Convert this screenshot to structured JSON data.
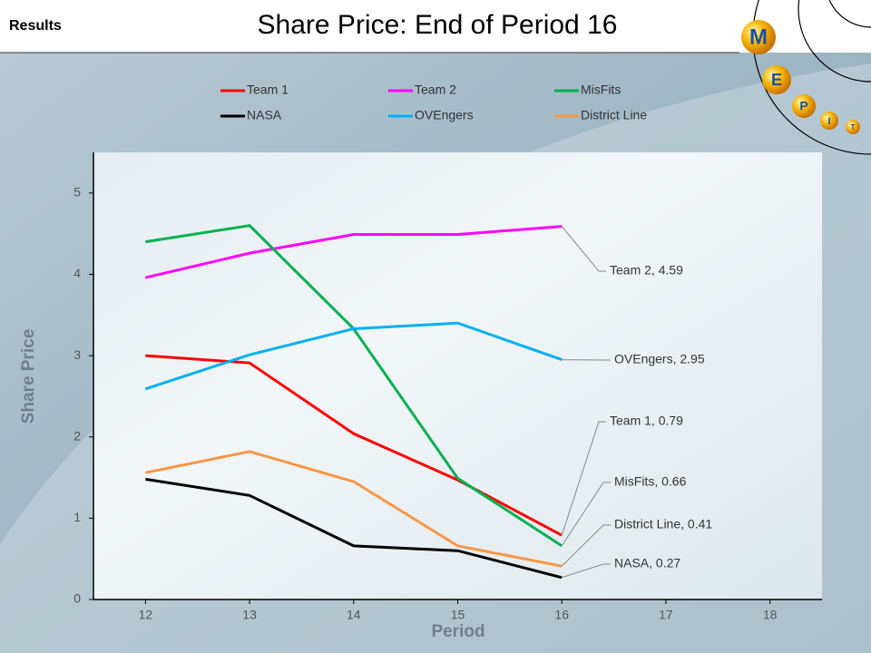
{
  "header": {
    "section": "Results"
  },
  "logo": [
    "M",
    "E",
    "P",
    "I",
    "T"
  ],
  "chart_data": {
    "type": "line",
    "title": "Share Price: End of Period 16",
    "x_label": "Period",
    "y_label": "Share Price",
    "x": [
      12,
      13,
      14,
      15,
      16
    ],
    "xlim": [
      11.5,
      18.5
    ],
    "xticks": [
      12,
      13,
      14,
      15,
      16,
      17,
      18
    ],
    "ylim": [
      0,
      5.5
    ],
    "yticks": [
      0,
      1,
      2,
      3,
      4,
      5
    ],
    "legend": "top",
    "series": [
      {
        "name": "Team 1",
        "color": "#ff0000",
        "values": [
          3.0,
          2.91,
          2.04,
          1.47,
          0.79
        ],
        "value_labels": [
          null,
          null,
          null,
          null,
          "Team 1, 0.79"
        ]
      },
      {
        "name": "Team 2",
        "color": "#ff00ff",
        "values": [
          3.96,
          4.26,
          4.49,
          4.49,
          4.59
        ],
        "value_labels": [
          null,
          null,
          null,
          null,
          "Team 2, 4.59"
        ]
      },
      {
        "name": "MisFits",
        "color": "#00b050",
        "values": [
          4.4,
          4.6,
          3.33,
          1.49,
          0.66
        ],
        "value_labels": [
          null,
          null,
          null,
          null,
          "MisFits, 0.66"
        ]
      },
      {
        "name": "NASA",
        "color": "#000000",
        "values": [
          1.48,
          1.28,
          0.66,
          0.6,
          0.27
        ],
        "value_labels": [
          null,
          null,
          null,
          null,
          "NASA, 0.27"
        ]
      },
      {
        "name": "OVEngers",
        "color": "#00b0f0",
        "values": [
          2.59,
          3.01,
          3.33,
          3.4,
          2.95
        ],
        "value_labels": [
          null,
          null,
          null,
          null,
          "OVEngers, 2.95"
        ]
      },
      {
        "name": "District Line",
        "color": "#f79646",
        "values": [
          1.56,
          1.82,
          1.45,
          0.66,
          0.41
        ],
        "value_labels": [
          null,
          null,
          null,
          null,
          "District Line, 0.41"
        ]
      }
    ]
  }
}
